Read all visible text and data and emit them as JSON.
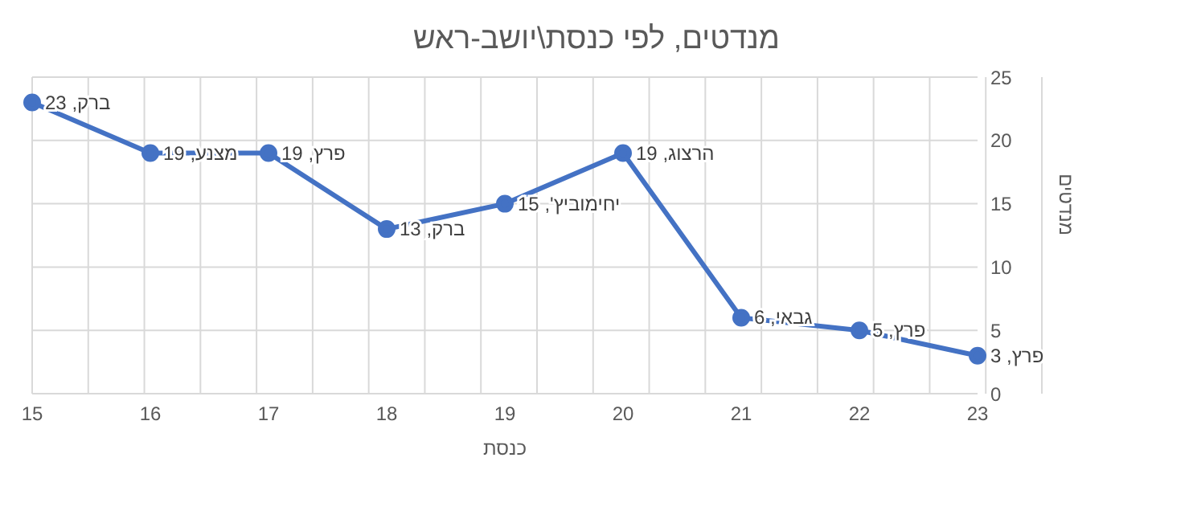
{
  "chart_data": {
    "type": "line",
    "title": "מנדטים, לפי כנסת\\יושב-ראש",
    "xlabel": "כנסת",
    "ylabel": "מנדטים",
    "categories": [
      "15",
      "16",
      "17",
      "18",
      "19",
      "20",
      "21",
      "22",
      "23"
    ],
    "series": [
      {
        "color": "#4472c4",
        "values": [
          23,
          19,
          19,
          13,
          15,
          19,
          6,
          5,
          3
        ],
        "value_labels": [
          "ברק, 23",
          "מצנע, 19",
          "פרץ, 19",
          "ברק, 13",
          "יחימוביץ', 15",
          "הרצוג, 19",
          "גבאי, 6",
          "פרץ, 5",
          "פרץ, 3"
        ]
      }
    ],
    "ylim": [
      0,
      25
    ],
    "yticks": [
      0,
      5,
      10,
      15,
      20,
      25
    ],
    "grid": true,
    "marker": "circle",
    "line_style": "solid"
  }
}
